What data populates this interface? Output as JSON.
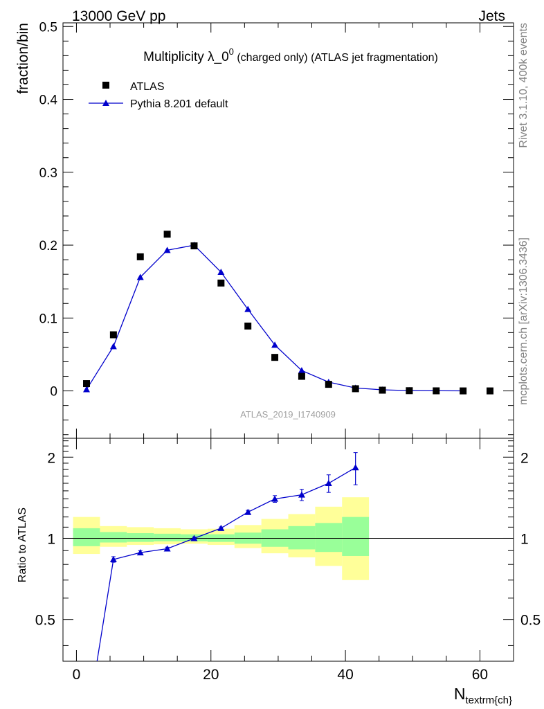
{
  "header": {
    "left": "13000 GeV pp",
    "right": "Jets"
  },
  "side_labels": {
    "rivet": "Rivet 3.1.10,  400k events",
    "mcplots": "mcplots.cern.ch [arXiv:1306.3436]"
  },
  "colors": {
    "mc": "#0000cc",
    "band_inner": "#99ff99",
    "band_outer": "#ffff99",
    "data": "#000000",
    "watermark": "#a0a0a0",
    "side_text": "#808080"
  },
  "chart_data": [
    {
      "type": "scatter",
      "panel": "main",
      "title": "Multiplicity λ_0",
      "title_sup": "0",
      "title_suffix": " (charged only) (ATLAS jet fragmentation)",
      "ylabel": "fraction/bin",
      "watermark": "ATLAS_2019_I1740909",
      "xlim": [
        -2,
        65
      ],
      "ylim": [
        -0.065,
        0.505
      ],
      "yticks": [
        0,
        0.1,
        0.2,
        0.3,
        0.4,
        0.5
      ],
      "ytick_labels": [
        "0",
        "0.1",
        "0.2",
        "0.3",
        "0.4",
        "0.5"
      ],
      "legend": {
        "placement": "top-left",
        "entries": [
          "ATLAS",
          "Pythia 8.201 default"
        ]
      },
      "series": [
        {
          "name": "ATLAS",
          "marker": "square",
          "x": [
            1.5,
            5.5,
            9.5,
            13.5,
            17.5,
            21.5,
            25.5,
            29.5,
            33.5,
            37.5,
            41.5,
            45.5,
            49.5,
            53.5,
            57.5,
            61.5
          ],
          "y": [
            0.01,
            0.077,
            0.184,
            0.215,
            0.199,
            0.148,
            0.089,
            0.046,
            0.02,
            0.009,
            0.003,
            0.001,
            0.0003,
            0.0001,
            0.0,
            0.0
          ]
        },
        {
          "name": "Pythia 8.201 default",
          "marker": "triangle",
          "x": [
            1.5,
            5.5,
            9.5,
            13.5,
            17.5,
            21.5,
            25.5,
            29.5,
            33.5,
            37.5,
            41.5,
            45.5,
            49.5,
            53.5,
            57.5
          ],
          "y": [
            0.002,
            0.061,
            0.156,
            0.193,
            0.2,
            0.163,
            0.112,
            0.063,
            0.028,
            0.012,
            0.004,
            0.0015,
            0.0005,
            0.0002,
            0.0001
          ]
        }
      ]
    },
    {
      "type": "line",
      "panel": "ratio",
      "ylabel": "Ratio to ATLAS",
      "xlabel": "N",
      "xlabel_sub": "textrm{ch}",
      "xlim": [
        -2,
        65
      ],
      "ylim": [
        0.35,
        2.35
      ],
      "xticks": [
        0,
        20,
        40,
        60
      ],
      "xtick_labels": [
        "0",
        "20",
        "40",
        "60"
      ],
      "yticks": [
        0.5,
        1,
        2
      ],
      "ytick_labels": [
        "0.5",
        "1",
        "2"
      ],
      "reference_line": 1,
      "band_edges": [
        -0.5,
        3.5,
        7.5,
        11.5,
        15.5,
        19.5,
        23.5,
        27.5,
        31.5,
        35.5,
        39.5,
        43.5
      ],
      "band_inner": [
        [
          0.935,
          1.09
        ],
        [
          0.965,
          1.055
        ],
        [
          0.97,
          1.045
        ],
        [
          0.975,
          1.04
        ],
        [
          0.975,
          1.035
        ],
        [
          0.97,
          1.035
        ],
        [
          0.955,
          1.05
        ],
        [
          0.93,
          1.08
        ],
        [
          0.91,
          1.11
        ],
        [
          0.89,
          1.14
        ],
        [
          0.86,
          1.2
        ]
      ],
      "band_outer": [
        [
          0.875,
          1.2
        ],
        [
          0.93,
          1.11
        ],
        [
          0.945,
          1.1
        ],
        [
          0.95,
          1.09
        ],
        [
          0.955,
          1.08
        ],
        [
          0.945,
          1.085
        ],
        [
          0.92,
          1.12
        ],
        [
          0.88,
          1.18
        ],
        [
          0.85,
          1.23
        ],
        [
          0.79,
          1.31
        ],
        [
          0.7,
          1.42
        ]
      ],
      "series": [
        {
          "name": "Pythia 8.201 default",
          "x": [
            1.5,
            5.5,
            9.5,
            13.5,
            17.5,
            21.5,
            25.5,
            29.5,
            33.5,
            37.5,
            41.5
          ],
          "y": [
            0.2,
            0.835,
            0.885,
            0.915,
            1.0,
            1.09,
            1.25,
            1.4,
            1.45,
            1.6,
            1.83
          ],
          "err": [
            0,
            0.02,
            0.015,
            0.012,
            0.01,
            0.012,
            0.02,
            0.04,
            0.07,
            0.12,
            0.25
          ]
        }
      ]
    }
  ]
}
